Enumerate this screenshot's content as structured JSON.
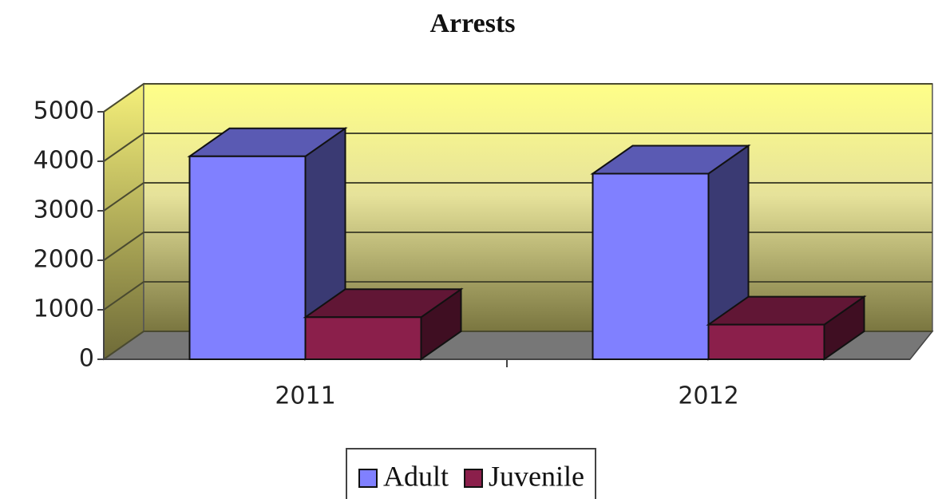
{
  "chart_data": {
    "type": "bar",
    "title": "Arrests",
    "categories": [
      "2011",
      "2012"
    ],
    "series": [
      {
        "name": "Adult",
        "color": "#8080ff",
        "values": [
          4100,
          3750
        ]
      },
      {
        "name": "Juvenile",
        "color": "#8b1f4b",
        "values": [
          850,
          700
        ]
      }
    ],
    "ylim": [
      0,
      5000
    ],
    "yticks": [
      0,
      1000,
      2000,
      3000,
      4000,
      5000
    ],
    "grid": true,
    "legend": "bottom"
  }
}
